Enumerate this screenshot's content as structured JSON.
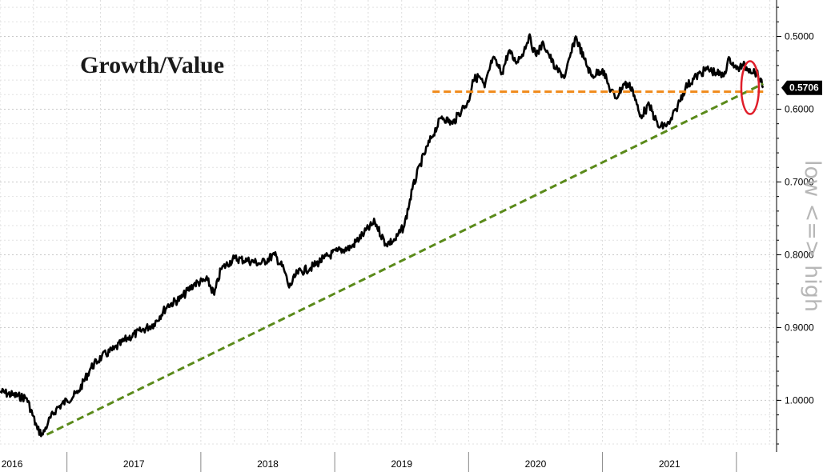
{
  "chart_data": {
    "type": "line",
    "title": "Growth/Value",
    "ylabel": "low <=> high",
    "inverted_y": true,
    "ylim": [
      0.45,
      1.06
    ],
    "x_tick_labels": [
      "2016",
      "2017",
      "2018",
      "2019",
      "2020",
      "2021"
    ],
    "x_tick_positions": [
      2016.85,
      2017.5,
      2018.5,
      2019.5,
      2020.5,
      2021.5
    ],
    "y_ticks": [
      0.5,
      0.6,
      0.7,
      0.8,
      0.9,
      1.0
    ],
    "y_tick_labels": [
      "0.5000",
      "0.6000",
      "0.7000",
      "0.8000",
      "0.9000",
      "1.0000"
    ],
    "grid": true,
    "last_value": 0.5706,
    "last_value_label": "0.5706",
    "series": [
      {
        "color": "#000000",
        "x": [
          2016.5,
          2016.6,
          2016.7,
          2016.78,
          2016.82,
          2016.86,
          2016.92,
          2017.0,
          2017.08,
          2017.18,
          2017.26,
          2017.35,
          2017.45,
          2017.55,
          2017.65,
          2017.75,
          2017.85,
          2017.95,
          2018.05,
          2018.1,
          2018.15,
          2018.25,
          2018.35,
          2018.45,
          2018.55,
          2018.62,
          2018.66,
          2018.72,
          2018.82,
          2018.92,
          2019.02,
          2019.12,
          2019.22,
          2019.3,
          2019.38,
          2019.45,
          2019.52,
          2019.58,
          2019.64,
          2019.72,
          2019.8,
          2019.88,
          2019.95,
          2020.0,
          2020.03,
          2020.08,
          2020.12,
          2020.18,
          2020.25,
          2020.3,
          2020.35,
          2020.4,
          2020.45,
          2020.5,
          2020.56,
          2020.6,
          2020.65,
          2020.72,
          2020.8,
          2020.86,
          2020.92,
          2021.0,
          2021.05,
          2021.1,
          2021.16,
          2021.22,
          2021.28,
          2021.35,
          2021.42,
          2021.5,
          2021.55,
          2021.62,
          2021.7,
          2021.78,
          2021.85,
          2021.9,
          2021.95,
          2022.0,
          2022.05,
          2022.1,
          2022.15,
          2022.2
        ],
        "y": [
          0.988,
          0.993,
          0.997,
          1.04,
          1.047,
          1.03,
          1.012,
          1.0,
          0.99,
          0.955,
          0.94,
          0.93,
          0.915,
          0.905,
          0.895,
          0.87,
          0.86,
          0.84,
          0.835,
          0.855,
          0.82,
          0.805,
          0.808,
          0.812,
          0.8,
          0.82,
          0.845,
          0.825,
          0.818,
          0.805,
          0.795,
          0.79,
          0.77,
          0.755,
          0.785,
          0.78,
          0.76,
          0.71,
          0.675,
          0.64,
          0.61,
          0.62,
          0.6,
          0.59,
          0.56,
          0.555,
          0.57,
          0.53,
          0.55,
          0.52,
          0.535,
          0.525,
          0.5,
          0.525,
          0.51,
          0.525,
          0.545,
          0.555,
          0.5,
          0.53,
          0.555,
          0.545,
          0.57,
          0.585,
          0.565,
          0.57,
          0.61,
          0.595,
          0.625,
          0.62,
          0.6,
          0.57,
          0.555,
          0.545,
          0.55,
          0.555,
          0.53,
          0.545,
          0.54,
          0.545,
          0.55,
          0.5706
        ]
      },
      {
        "color": "#5a8a1a",
        "style": "dashed",
        "x": [
          2016.85,
          2022.2
        ],
        "y": [
          1.047,
          0.565
        ]
      },
      {
        "color": "#f08a1a",
        "style": "dashed",
        "x": [
          2019.73,
          2022.2
        ],
        "y": [
          0.576,
          0.576
        ]
      }
    ],
    "annotation": {
      "type": "ellipse",
      "color": "#e01e2a",
      "x": 2022.18,
      "y": 0.555
    }
  }
}
